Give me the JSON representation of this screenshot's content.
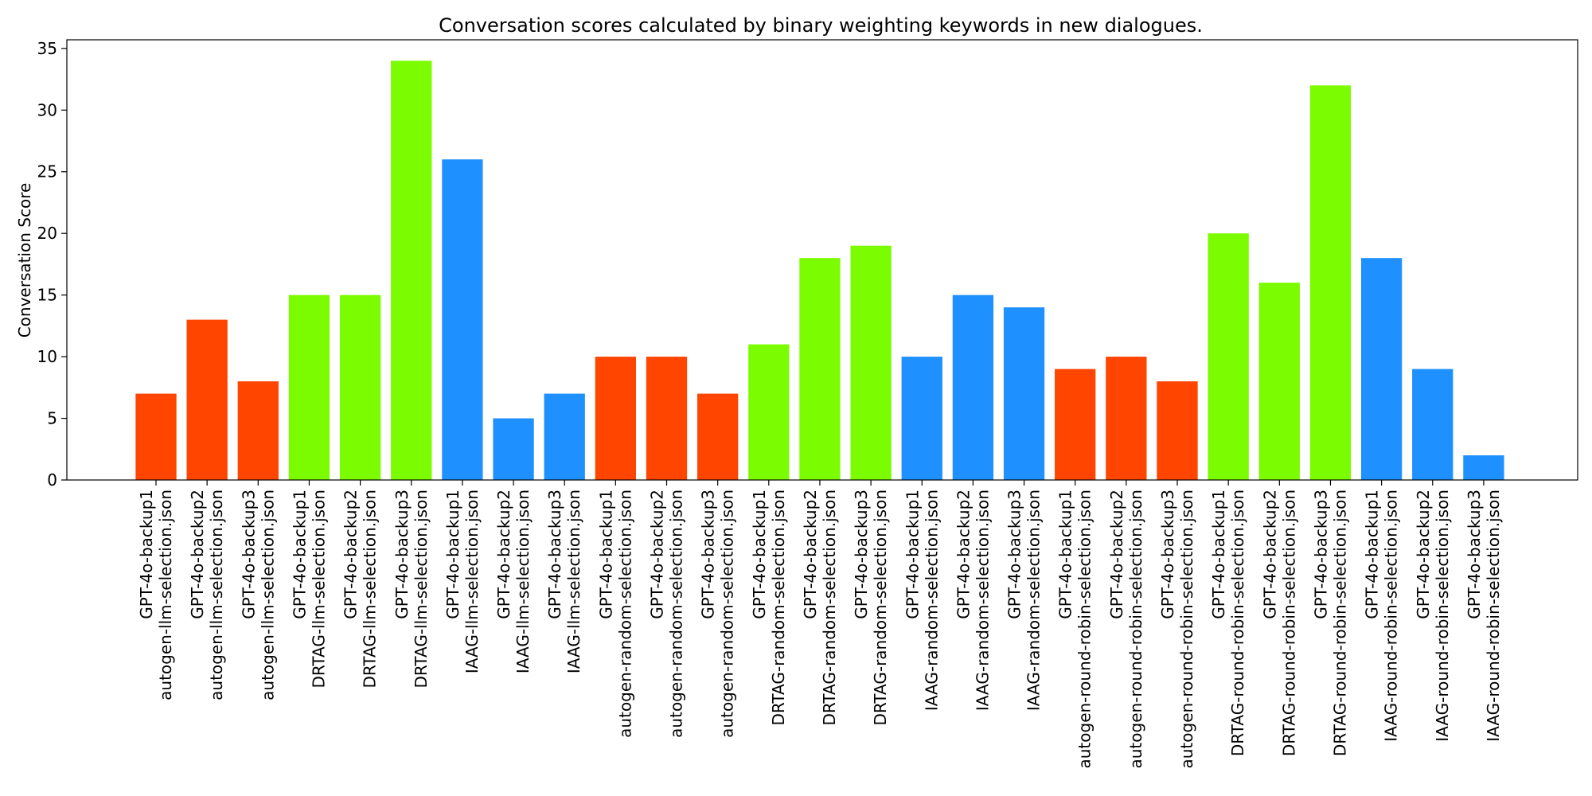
{
  "chart_data": {
    "type": "bar",
    "title": "Conversation scores calculated by binary weighting keywords in new dialogues.",
    "xlabel": "",
    "ylabel": "Conversation Score",
    "ylim": [
      0,
      35.7
    ],
    "yticks": [
      0,
      5,
      10,
      15,
      20,
      25,
      30,
      35
    ],
    "grid": false,
    "colors": {
      "autogen": "#ff4500",
      "DRTAG": "#7cfc00",
      "IAAG": "#1e90ff"
    },
    "categories": [
      "GPT-4o-backup1\nautogen-llm-selection.json",
      "GPT-4o-backup2\nautogen-llm-selection.json",
      "GPT-4o-backup3\nautogen-llm-selection.json",
      "GPT-4o-backup1\nDRTAG-llm-selection.json",
      "GPT-4o-backup2\nDRTAG-llm-selection.json",
      "GPT-4o-backup3\nDRTAG-llm-selection.json",
      "GPT-4o-backup1\nIAAG-llm-selection.json",
      "GPT-4o-backup2\nIAAG-llm-selection.json",
      "GPT-4o-backup3\nIAAG-llm-selection.json",
      "GPT-4o-backup1\nautogen-random-selection.json",
      "GPT-4o-backup2\nautogen-random-selection.json",
      "GPT-4o-backup3\nautogen-random-selection.json",
      "GPT-4o-backup1\nDRTAG-random-selection.json",
      "GPT-4o-backup2\nDRTAG-random-selection.json",
      "GPT-4o-backup3\nDRTAG-random-selection.json",
      "GPT-4o-backup1\nIAAG-random-selection.json",
      "GPT-4o-backup2\nIAAG-random-selection.json",
      "GPT-4o-backup3\nIAAG-random-selection.json",
      "GPT-4o-backup1\nautogen-round-robin-selection.json",
      "GPT-4o-backup2\nautogen-round-robin-selection.json",
      "GPT-4o-backup3\nautogen-round-robin-selection.json",
      "GPT-4o-backup1\nDRTAG-round-robin-selection.json",
      "GPT-4o-backup2\nDRTAG-round-robin-selection.json",
      "GPT-4o-backup3\nDRTAG-round-robin-selection.json",
      "GPT-4o-backup1\nIAAG-round-robin-selection.json",
      "GPT-4o-backup2\nIAAG-round-robin-selection.json",
      "GPT-4o-backup3\nIAAG-round-robin-selection.json"
    ],
    "values": [
      7,
      13,
      8,
      15,
      15,
      34,
      26,
      5,
      7,
      10,
      10,
      7,
      11,
      18,
      19,
      10,
      15,
      14,
      9,
      10,
      8,
      20,
      16,
      32,
      18,
      9,
      2
    ],
    "bar_colors": [
      "#ff4500",
      "#ff4500",
      "#ff4500",
      "#7cfc00",
      "#7cfc00",
      "#7cfc00",
      "#1e90ff",
      "#1e90ff",
      "#1e90ff",
      "#ff4500",
      "#ff4500",
      "#ff4500",
      "#7cfc00",
      "#7cfc00",
      "#7cfc00",
      "#1e90ff",
      "#1e90ff",
      "#1e90ff",
      "#ff4500",
      "#ff4500",
      "#ff4500",
      "#7cfc00",
      "#7cfc00",
      "#7cfc00",
      "#1e90ff",
      "#1e90ff",
      "#1e90ff"
    ]
  }
}
